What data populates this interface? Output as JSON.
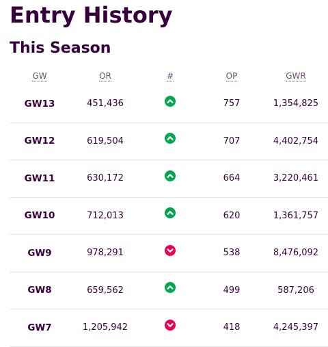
{
  "page": {
    "title": "Entry History",
    "section_title": "This Season"
  },
  "table": {
    "headers": {
      "gw": "GW",
      "or": "OR",
      "change": "#",
      "op": "OP",
      "gwr": "GWR"
    },
    "rows": [
      {
        "gw": "GW13",
        "or": "451,436",
        "movement": "up",
        "op": "757",
        "gwr": "1,354,825"
      },
      {
        "gw": "GW12",
        "or": "619,504",
        "movement": "up",
        "op": "707",
        "gwr": "4,402,754"
      },
      {
        "gw": "GW11",
        "or": "630,172",
        "movement": "up",
        "op": "664",
        "gwr": "3,220,461"
      },
      {
        "gw": "GW10",
        "or": "712,013",
        "movement": "up",
        "op": "620",
        "gwr": "1,361,757"
      },
      {
        "gw": "GW9",
        "or": "978,291",
        "movement": "down",
        "op": "538",
        "gwr": "8,476,092"
      },
      {
        "gw": "GW8",
        "or": "659,562",
        "movement": "up",
        "op": "499",
        "gwr": "587,206"
      },
      {
        "gw": "GW7",
        "or": "1,205,942",
        "movement": "down",
        "op": "418",
        "gwr": "4,245,397"
      }
    ]
  },
  "colors": {
    "text": "#37003c",
    "up": "#01a74f",
    "down": "#e90052"
  },
  "icons": {
    "up": "chevron-up-icon",
    "down": "chevron-down-icon"
  }
}
